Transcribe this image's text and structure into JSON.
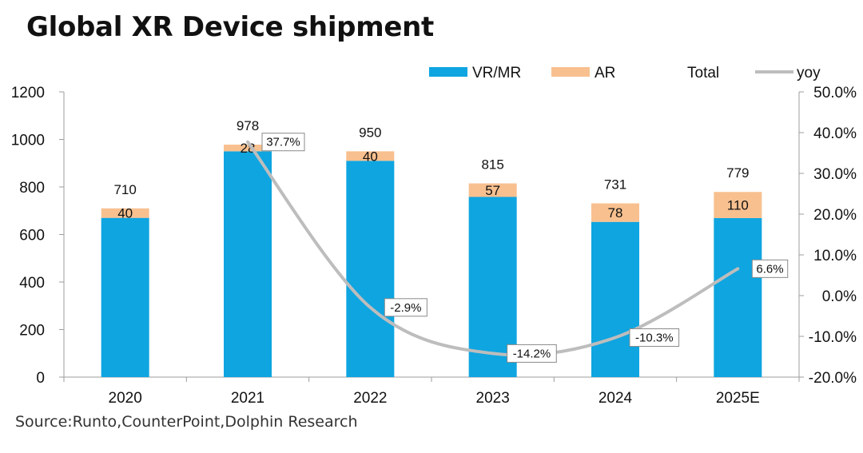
{
  "chart_data": {
    "type": "bar",
    "stacked": true,
    "title": "Global XR Device shipment",
    "source": "Source:Runto,CounterPoint,Dolphin Research",
    "categories": [
      "2020",
      "2021",
      "2022",
      "2023",
      "2024",
      "2025E"
    ],
    "series": [
      {
        "name": "VR/MR",
        "values": [
          670,
          950,
          910,
          758,
          653,
          669
        ],
        "color": "#0ea5e0"
      },
      {
        "name": "AR",
        "values": [
          40,
          28,
          40,
          57,
          78,
          110
        ],
        "color": "#f8c08f"
      },
      {
        "name": "Total",
        "values": [
          710,
          978,
          950,
          815,
          731,
          779
        ]
      },
      {
        "name": "yoy",
        "type": "line",
        "axis": "right",
        "values": [
          null,
          37.7,
          -2.9,
          -14.2,
          -10.3,
          6.6
        ],
        "color": "#bdbdbd"
      }
    ],
    "data_labels": {
      "AR": [
        "40",
        "28",
        "40",
        "57",
        "78",
        "110"
      ],
      "Total": [
        "710",
        "978",
        "950",
        "815",
        "731",
        "779"
      ],
      "yoy": [
        "",
        "37.7%",
        "-2.9%",
        "-14.2%",
        "-10.3%",
        "6.6%"
      ]
    },
    "ylim": [
      0,
      1200
    ],
    "yticks": [
      "0",
      "200",
      "400",
      "600",
      "800",
      "1000",
      "1200"
    ],
    "y2lim": [
      -20,
      50
    ],
    "y2ticks": [
      "-20.0%",
      "-10.0%",
      "0.0%",
      "10.0%",
      "20.0%",
      "30.0%",
      "40.0%",
      "50.0%"
    ],
    "legend": [
      "VR/MR",
      "AR",
      "Total",
      "yoy"
    ],
    "legend_position": "top",
    "grid": false
  }
}
